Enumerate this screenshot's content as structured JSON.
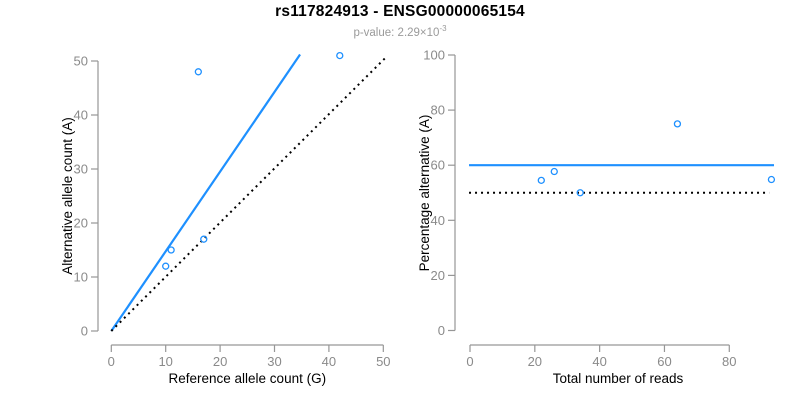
{
  "header": {
    "title": "rs117824913 - ENSG00000065154",
    "subtitle_text": "p-value: 2.29×10",
    "subtitle_exponent": "-3"
  },
  "colors": {
    "accent_blue": "#1E90FF",
    "black": "#000000",
    "tick_label_gray": "#8a8a8a",
    "axis_gray": "#969696",
    "subtitle_gray": "#9a9a9a",
    "background": "#ffffff"
  },
  "chart_data": [
    {
      "type": "scatter",
      "title": "",
      "xlabel": "Reference allele count (G)",
      "ylabel": "Alternative allele count (A)",
      "xlim": [
        0,
        52
      ],
      "ylim": [
        0,
        53
      ],
      "xticks": [
        0,
        10,
        20,
        30,
        40,
        50
      ],
      "yticks": [
        0,
        10,
        20,
        30,
        40,
        50
      ],
      "grid": false,
      "legend": false,
      "point_style": {
        "shape": "open-circle",
        "color": "#1E90FF"
      },
      "points": [
        [
          10,
          12
        ],
        [
          11,
          15
        ],
        [
          16,
          48
        ],
        [
          17,
          17
        ],
        [
          42,
          51
        ]
      ],
      "lines": [
        {
          "name": "fitted-allelic-ratio-line",
          "style": "solid",
          "color": "#1E90FF",
          "from": [
            0,
            0
          ],
          "to": [
            34.7,
            51.2
          ]
        },
        {
          "name": "identity-line",
          "style": "dotted",
          "color": "#000000",
          "from": [
            0,
            0
          ],
          "to": [
            50.6,
            50.8
          ]
        }
      ]
    },
    {
      "type": "scatter",
      "title": "",
      "xlabel": "Total number of reads",
      "ylabel": "Percentage alternative (A)",
      "xlim": [
        0,
        94
      ],
      "ylim": [
        0,
        104
      ],
      "xticks": [
        0,
        20,
        40,
        60,
        80
      ],
      "yticks": [
        0,
        20,
        40,
        60,
        80,
        100
      ],
      "grid": false,
      "legend": false,
      "point_style": {
        "shape": "open-circle",
        "color": "#1E90FF"
      },
      "points": [
        [
          22,
          54.5
        ],
        [
          26,
          57.7
        ],
        [
          34,
          50
        ],
        [
          64,
          75
        ],
        [
          93,
          54.8
        ]
      ],
      "lines": [
        {
          "name": "mean-percentage-line",
          "style": "solid",
          "color": "#1E90FF",
          "from": [
            -0.3,
            60
          ],
          "to": [
            93.8,
            60
          ]
        },
        {
          "name": "fifty-percent-reference-line",
          "style": "dotted",
          "color": "#000000",
          "from": [
            -0.3,
            50
          ],
          "to": [
            92.3,
            50
          ]
        }
      ]
    }
  ]
}
